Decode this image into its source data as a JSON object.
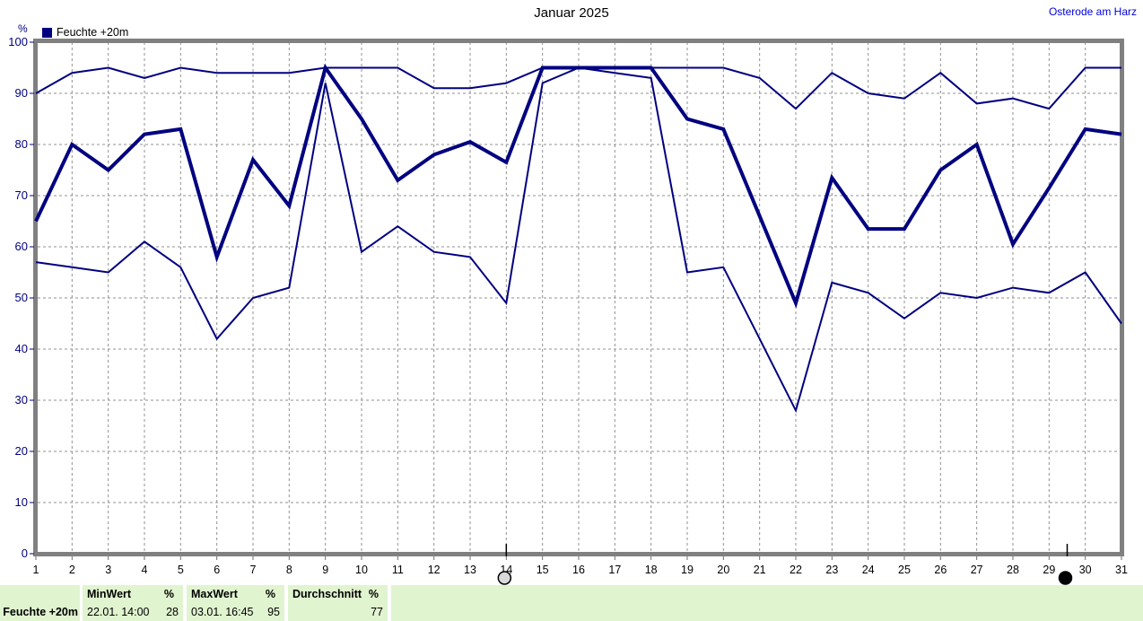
{
  "header": {
    "title": "Januar 2025",
    "station": "Osterode am Harz"
  },
  "legend": {
    "label": "Feuchte +20m",
    "color": "#000080"
  },
  "axis": {
    "unit": "%"
  },
  "colors": {
    "line": "#000080",
    "axis_frame": "#808080",
    "table_background": "#e1f4d0",
    "station_link": "#0000dd",
    "y_label": "#000080"
  },
  "table": {
    "row_label": "Feuchte +20m",
    "min": {
      "header": "MinWert",
      "unit": "%",
      "datetime": "22.01. 14:00",
      "value": "28"
    },
    "max": {
      "header": "MaxWert",
      "unit": "%",
      "datetime": "03.01. 16:45",
      "value": "95"
    },
    "avg": {
      "header": "Durchschnitt",
      "unit": "%",
      "value": "77"
    }
  },
  "chart_data": {
    "type": "line",
    "title": "Januar 2025",
    "legend": "Feuchte +20m",
    "ylabel": "%",
    "ylim": [
      0,
      100
    ],
    "yticks": [
      0,
      10,
      20,
      30,
      40,
      50,
      60,
      70,
      80,
      90,
      100
    ],
    "grid": true,
    "x": [
      1,
      2,
      3,
      4,
      5,
      6,
      7,
      8,
      9,
      10,
      11,
      12,
      13,
      14,
      15,
      16,
      17,
      18,
      19,
      20,
      21,
      22,
      23,
      24,
      25,
      26,
      27,
      28,
      29,
      30,
      31
    ],
    "series": [
      {
        "name": "Feuchte +20m Maximum",
        "role": "max",
        "values": [
          90,
          94,
          95,
          93,
          95,
          94,
          94,
          94,
          95,
          95,
          95,
          91,
          91,
          92,
          95,
          95,
          95,
          95,
          95,
          95,
          93,
          87,
          94,
          90,
          89,
          94,
          88,
          89,
          87,
          95,
          95
        ]
      },
      {
        "name": "Feuchte +20m Mittelwert",
        "role": "avg",
        "values": [
          65,
          80,
          75,
          82,
          83,
          58,
          77,
          68,
          95,
          85,
          73,
          78,
          80.5,
          76.5,
          95,
          95,
          95,
          95,
          85,
          83,
          66,
          49,
          73.5,
          63.5,
          63.5,
          75,
          80,
          60.5,
          71.5,
          83,
          82
        ]
      },
      {
        "name": "Feuchte +20m Minimum",
        "role": "min",
        "values": [
          57,
          56,
          55,
          61,
          56,
          42,
          50,
          52,
          92,
          59,
          64,
          59,
          58,
          49,
          92,
          95,
          94,
          93,
          55,
          56,
          42,
          28,
          53,
          51,
          46,
          51,
          50,
          52,
          51,
          55,
          45
        ]
      }
    ],
    "markers": [
      {
        "phase": "full-moon",
        "day": 14
      },
      {
        "phase": "new-moon",
        "day": 29.5
      }
    ]
  }
}
